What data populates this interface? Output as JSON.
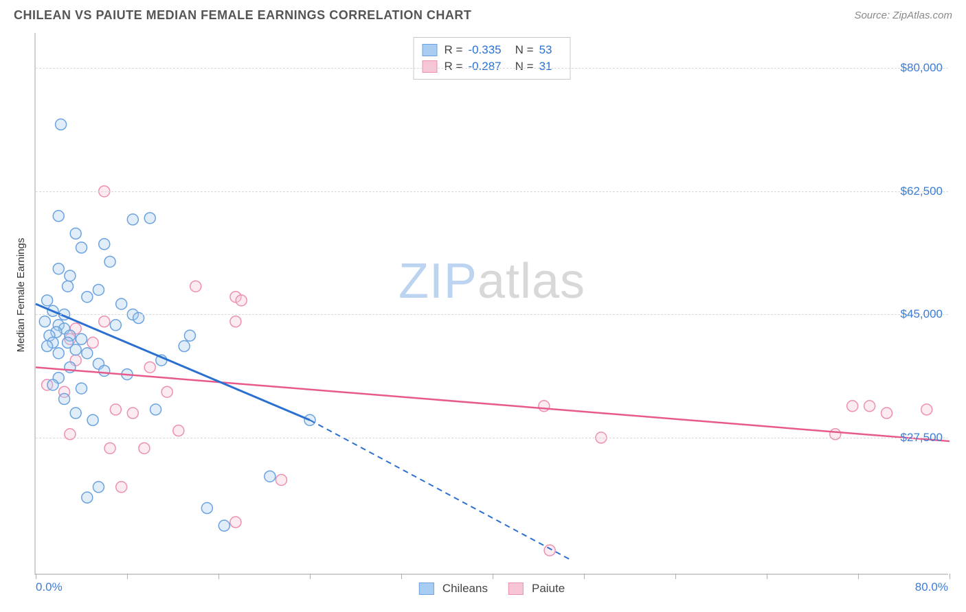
{
  "header": {
    "title": "CHILEAN VS PAIUTE MEDIAN FEMALE EARNINGS CORRELATION CHART",
    "source": "Source: ZipAtlas.com"
  },
  "chart": {
    "type": "scatter",
    "y_axis_title": "Median Female Earnings",
    "xlim": [
      0,
      80
    ],
    "ylim": [
      8000,
      85000
    ],
    "x_tick_positions": [
      0,
      8,
      16,
      24,
      32,
      40,
      48,
      56,
      64,
      72,
      80
    ],
    "x_tick_labels_shown": {
      "0": "0.0%",
      "80": "80.0%"
    },
    "y_gridlines": [
      27500,
      45000,
      62500,
      80000
    ],
    "y_tick_labels": {
      "27500": "$27,500",
      "45000": "$45,000",
      "62500": "$62,500",
      "80000": "$80,000"
    },
    "grid_color": "#d8d8d8",
    "axis_color": "#d0d0d0",
    "background_color": "#ffffff",
    "tick_label_color": "#3b7dd8",
    "tick_label_fontsize": 17,
    "title_color": "#555555",
    "title_fontsize": 18,
    "marker_radius": 8,
    "marker_stroke_width": 1.5,
    "marker_fill_opacity": 0.35,
    "watermark": {
      "text_zip": "ZIP",
      "text_atlas": "atlas",
      "color_zip": "#bcd4f0",
      "color_atlas": "#d8d8d8",
      "fontsize": 72
    }
  },
  "series": {
    "chileans": {
      "label": "Chileans",
      "fill": "#a9cdf2",
      "stroke": "#6aa2e0",
      "line_color": "#2b6fd0",
      "line_width": 3,
      "R": "-0.335",
      "N": "53",
      "trend": {
        "x1": 0,
        "y1": 46500,
        "x2": 24,
        "y2": 30000,
        "dash_x2": 47,
        "dash_y2": 10000
      },
      "points": [
        [
          2.2,
          72000
        ],
        [
          2.0,
          59000
        ],
        [
          8.5,
          58500
        ],
        [
          10.0,
          58700
        ],
        [
          3.5,
          56500
        ],
        [
          6.0,
          55000
        ],
        [
          6.5,
          52500
        ],
        [
          4.0,
          54500
        ],
        [
          2.0,
          51500
        ],
        [
          3.0,
          50500
        ],
        [
          2.8,
          49000
        ],
        [
          5.5,
          48500
        ],
        [
          4.5,
          47500
        ],
        [
          7.5,
          46500
        ],
        [
          8.5,
          45000
        ],
        [
          1.0,
          47000
        ],
        [
          1.5,
          45500
        ],
        [
          0.8,
          44000
        ],
        [
          2.0,
          43500
        ],
        [
          2.5,
          43000
        ],
        [
          1.8,
          42500
        ],
        [
          1.2,
          42000
        ],
        [
          3.0,
          42000
        ],
        [
          4.0,
          41500
        ],
        [
          1.5,
          41000
        ],
        [
          2.8,
          41000
        ],
        [
          1.0,
          40500
        ],
        [
          3.5,
          40000
        ],
        [
          2.0,
          39500
        ],
        [
          4.5,
          39500
        ],
        [
          9.0,
          44500
        ],
        [
          13.0,
          40500
        ],
        [
          13.5,
          42000
        ],
        [
          11.0,
          38500
        ],
        [
          5.5,
          38000
        ],
        [
          3.0,
          37500
        ],
        [
          6.0,
          37000
        ],
        [
          2.0,
          36000
        ],
        [
          8.0,
          36500
        ],
        [
          1.5,
          35000
        ],
        [
          4.0,
          34500
        ],
        [
          10.5,
          31500
        ],
        [
          2.5,
          33000
        ],
        [
          3.5,
          31000
        ],
        [
          5.0,
          30000
        ],
        [
          5.5,
          20500
        ],
        [
          15.0,
          17500
        ],
        [
          16.5,
          15000
        ],
        [
          4.5,
          19000
        ],
        [
          20.5,
          22000
        ],
        [
          24.0,
          30000
        ],
        [
          2.5,
          45000
        ],
        [
          7.0,
          43500
        ]
      ]
    },
    "paiute": {
      "label": "Paiute",
      "fill": "#f6c6d6",
      "stroke": "#ec8fb2",
      "line_color": "#e85a8c",
      "line_width": 2.5,
      "R": "-0.287",
      "N": "31",
      "trend": {
        "x1": 0,
        "y1": 37500,
        "x2": 80,
        "y2": 27000
      },
      "points": [
        [
          6.0,
          62500
        ],
        [
          14.0,
          49000
        ],
        [
          17.5,
          47500
        ],
        [
          18.0,
          47000
        ],
        [
          6.0,
          44000
        ],
        [
          3.5,
          43000
        ],
        [
          3.0,
          41500
        ],
        [
          5.0,
          41000
        ],
        [
          10.0,
          37500
        ],
        [
          17.5,
          44000
        ],
        [
          1.0,
          35000
        ],
        [
          2.5,
          34000
        ],
        [
          7.0,
          31500
        ],
        [
          8.5,
          31000
        ],
        [
          3.0,
          28000
        ],
        [
          12.5,
          28500
        ],
        [
          6.5,
          26000
        ],
        [
          9.5,
          26000
        ],
        [
          7.5,
          20500
        ],
        [
          21.5,
          21500
        ],
        [
          17.5,
          15500
        ],
        [
          44.5,
          32000
        ],
        [
          49.5,
          27500
        ],
        [
          70.0,
          28000
        ],
        [
          71.5,
          32000
        ],
        [
          73.0,
          32000
        ],
        [
          74.5,
          31000
        ],
        [
          78.0,
          31500
        ],
        [
          45.0,
          11500
        ],
        [
          3.5,
          38500
        ],
        [
          11.5,
          34000
        ]
      ]
    }
  },
  "legend_top_labels": {
    "R": "R =",
    "N": "N ="
  },
  "legend_bottom_labels": {
    "chileans": "Chileans",
    "paiute": "Paiute"
  }
}
